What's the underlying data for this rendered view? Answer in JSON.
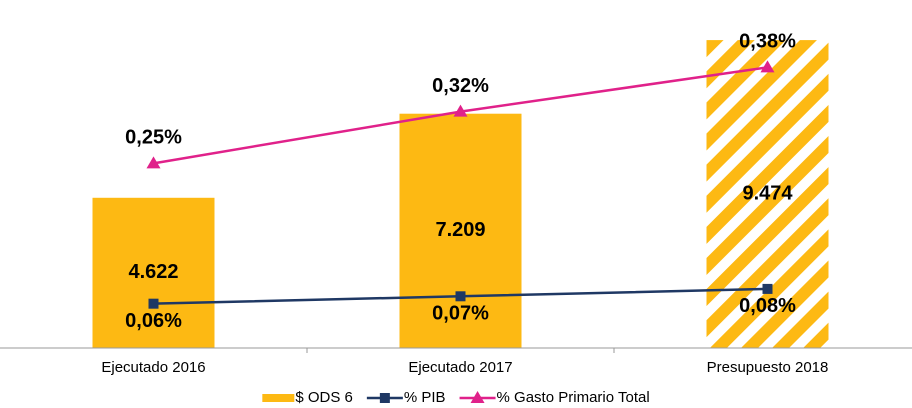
{
  "chart_data": {
    "type": "bar",
    "categories": [
      "Ejecutado 2016",
      "Ejecutado 2017",
      "Presupuesto 2018"
    ],
    "series": [
      {
        "name": "$ ODS 6",
        "type": "bar",
        "color": "#FDB913",
        "values": [
          4622,
          7209,
          9474
        ],
        "value_labels": [
          "4.622",
          "7.209",
          "9.474"
        ],
        "hatch": [
          false,
          false,
          true
        ],
        "label_position": "center"
      },
      {
        "name": "% PIB",
        "type": "line",
        "marker": "square",
        "axis": "y2",
        "color": "#1F3864",
        "values": [
          0.06,
          0.07,
          0.08
        ],
        "value_labels": [
          "0,06%",
          "0,07%",
          "0,08%"
        ],
        "label_position": "below"
      },
      {
        "name": "% Gasto Primario Total",
        "type": "line",
        "marker": "triangle",
        "axis": "y2",
        "color": "#E0218A",
        "values": [
          0.25,
          0.32,
          0.38
        ],
        "value_labels": [
          "0,25%",
          "0,32%",
          "0,38%"
        ],
        "label_position": "above"
      }
    ],
    "ylim": [
      0,
      10000
    ],
    "y2lim": [
      0,
      0.44
    ],
    "legend": "bottom"
  }
}
